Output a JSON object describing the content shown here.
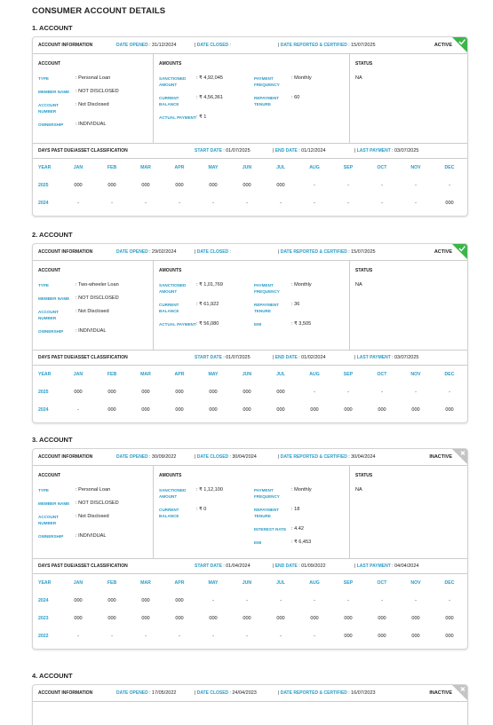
{
  "title": "CONSUMER ACCOUNT DETAILS",
  "accounts": [
    {
      "heading": "1. ACCOUNT",
      "badge_color": "#3cb54a",
      "badge_icon": "check",
      "info": {
        "label": "ACCOUNT INFORMATION",
        "date_opened": {
          "label": "DATE OPENED",
          "value": "31/12/2024"
        },
        "date_closed": {
          "label": "DATE CLOSED"
        },
        "date_reported": {
          "label": "DATE REPORTED & CERTIFIED",
          "value": "15/07/2025"
        },
        "status": "ACTIVE"
      },
      "account": {
        "title": "ACCOUNT",
        "fields": [
          {
            "label": "TYPE",
            "value": "Personal Loan"
          },
          {
            "label": "MEMBER NAME",
            "value": "NOT DISCLOSED"
          },
          {
            "label": "ACCOUNT NUMBER",
            "value": "Not Disclosed"
          },
          {
            "label": "OWNERSHIP",
            "value": "INDIVIDUAL"
          }
        ]
      },
      "amounts": {
        "title": "AMOUNTS",
        "left": [
          {
            "label": "SANCTIONED AMOUNT",
            "value": "₹ 4,92,045"
          },
          {
            "label": "CURRENT BALANCE",
            "value": "₹ 4,56,361"
          },
          {
            "label": "ACTUAL PAYMENT",
            "value": "₹ 1"
          }
        ],
        "right": [
          {
            "label": "PAYMENT FREQUENCY",
            "value": "Monthly"
          },
          {
            "label": "REPAYMENT TENURE",
            "value": "60"
          }
        ]
      },
      "status": {
        "title": "STATUS",
        "value": "NA"
      },
      "dpd": {
        "title": "DAYS PAST DUE/ASSET CLASSIFICATION",
        "start_date": {
          "label": "START DATE",
          "value": "01/07/2025"
        },
        "end_date": {
          "label": "END DATE",
          "value": "01/12/2024"
        },
        "last_payment": {
          "label": "LAST PAYMENT",
          "value": "03/07/2025"
        },
        "columns": [
          "YEAR",
          "JAN",
          "FEB",
          "MAR",
          "APR",
          "MAY",
          "JUN",
          "JUL",
          "AUG",
          "SEP",
          "OCT",
          "NOV",
          "DEC"
        ],
        "rows": [
          [
            "2025",
            "000",
            "000",
            "000",
            "000",
            "000",
            "000",
            "000",
            "-",
            "-",
            "-",
            "-",
            "-"
          ],
          [
            "2024",
            "-",
            "-",
            "-",
            "-",
            "-",
            "-",
            "-",
            "-",
            "-",
            "-",
            "-",
            "000"
          ]
        ]
      }
    },
    {
      "heading": "2. ACCOUNT",
      "badge_color": "#3cb54a",
      "badge_icon": "check",
      "info": {
        "label": "ACCOUNT INFORMATION",
        "date_opened": {
          "label": "DATE OPENED",
          "value": "29/02/2024"
        },
        "date_closed": {
          "label": "DATE CLOSED"
        },
        "date_reported": {
          "label": "DATE REPORTED & CERTIFIED",
          "value": "15/07/2025"
        },
        "status": "ACTIVE"
      },
      "account": {
        "title": "ACCOUNT",
        "fields": [
          {
            "label": "TYPE",
            "value": "Two-wheeler Loan"
          },
          {
            "label": "MEMBER NAME",
            "value": "NOT DISCLOSED"
          },
          {
            "label": "ACCOUNT NUMBER",
            "value": "Not Disclosed"
          },
          {
            "label": "OWNERSHIP",
            "value": "INDIVIDUAL"
          }
        ]
      },
      "amounts": {
        "title": "AMOUNTS",
        "left": [
          {
            "label": "SANCTIONED AMOUNT",
            "value": "₹ 1,01,769"
          },
          {
            "label": "CURRENT BALANCE",
            "value": "₹ 61,922"
          },
          {
            "label": "ACTUAL PAYMENT",
            "value": "₹ 56,080"
          }
        ],
        "right": [
          {
            "label": "PAYMENT FREQUENCY",
            "value": "Monthly"
          },
          {
            "label": "REPAYMENT TENURE",
            "value": "36"
          },
          {
            "label": "EMI",
            "value": "₹ 3,505"
          }
        ]
      },
      "status": {
        "title": "STATUS",
        "value": "NA"
      },
      "dpd": {
        "title": "DAYS PAST DUE/ASSET CLASSIFICATION",
        "start_date": {
          "label": "START DATE",
          "value": "01/07/2025"
        },
        "end_date": {
          "label": "END DATE",
          "value": "01/02/2024"
        },
        "last_payment": {
          "label": "LAST PAYMENT",
          "value": "03/07/2025"
        },
        "columns": [
          "YEAR",
          "JAN",
          "FEB",
          "MAR",
          "APR",
          "MAY",
          "JUN",
          "JUL",
          "AUG",
          "SEP",
          "OCT",
          "NOV",
          "DEC"
        ],
        "rows": [
          [
            "2025",
            "000",
            "000",
            "000",
            "000",
            "000",
            "000",
            "000",
            "-",
            "-",
            "-",
            "-",
            "-"
          ],
          [
            "2024",
            "-",
            "000",
            "000",
            "000",
            "000",
            "000",
            "000",
            "000",
            "000",
            "000",
            "000",
            "000"
          ]
        ]
      }
    },
    {
      "heading": "3. ACCOUNT",
      "badge_color": "#c4c4c4",
      "badge_icon": "cross",
      "info": {
        "label": "ACCOUNT INFORMATION",
        "date_opened": {
          "label": "DATE OPENED",
          "value": "30/09/2022"
        },
        "date_closed": {
          "label": "DATE CLOSED",
          "value": "30/04/2024"
        },
        "date_reported": {
          "label": "DATE REPORTED & CERTIFIED",
          "value": "30/04/2024"
        },
        "status": "INACTIVE"
      },
      "account": {
        "title": "ACCOUNT",
        "fields": [
          {
            "label": "TYPE",
            "value": "Personal Loan"
          },
          {
            "label": "MEMBER NAME",
            "value": "NOT DISCLOSED"
          },
          {
            "label": "ACCOUNT NUMBER",
            "value": "Not Disclosed"
          },
          {
            "label": "OWNERSHIP",
            "value": "INDIVIDUAL"
          }
        ]
      },
      "amounts": {
        "title": "AMOUNTS",
        "left": [
          {
            "label": "SANCTIONED AMOUNT",
            "value": "₹ 1,12,100"
          },
          {
            "label": "CURRENT BALANCE",
            "value": "₹ 0"
          }
        ],
        "right": [
          {
            "label": "PAYMENT FREQUENCY",
            "value": "Monthly"
          },
          {
            "label": "REPAYMENT TENURE",
            "value": "18"
          },
          {
            "label": "INTEREST RATE",
            "value": "4.42"
          },
          {
            "label": "EMI",
            "value": "₹ 6,453"
          }
        ]
      },
      "status": {
        "title": "STATUS",
        "value": "NA"
      },
      "dpd": {
        "title": "DAYS PAST DUE/ASSET CLASSIFICATION",
        "start_date": {
          "label": "START DATE",
          "value": "01/04/2024"
        },
        "end_date": {
          "label": "END DATE",
          "value": "01/09/2022"
        },
        "last_payment": {
          "label": "LAST PAYMENT",
          "value": "04/04/2024"
        },
        "columns": [
          "YEAR",
          "JAN",
          "FEB",
          "MAR",
          "APR",
          "MAY",
          "JUN",
          "JUL",
          "AUG",
          "SEP",
          "OCT",
          "NOV",
          "DEC"
        ],
        "rows": [
          [
            "2024",
            "000",
            "000",
            "000",
            "000",
            "-",
            "-",
            "-",
            "-",
            "-",
            "-",
            "-",
            "-"
          ],
          [
            "2023",
            "000",
            "000",
            "000",
            "000",
            "000",
            "000",
            "000",
            "000",
            "000",
            "000",
            "000",
            "000"
          ],
          [
            "2022",
            "-",
            "-",
            "-",
            "-",
            "-",
            "-",
            "-",
            "-",
            "000",
            "000",
            "000",
            "000"
          ]
        ]
      }
    },
    {
      "heading": "4. ACCOUNT",
      "badge_color": "#c4c4c4",
      "badge_icon": "cross",
      "info": {
        "label": "ACCOUNT INFORMATION",
        "date_opened": {
          "label": "DATE OPENED",
          "value": "17/05/2022"
        },
        "date_closed": {
          "label": "DATE CLOSED",
          "value": "24/04/2023"
        },
        "date_reported": {
          "label": "DATE REPORTED & CERTIFIED",
          "value": "16/07/2023"
        },
        "status": "INACTIVE"
      }
    }
  ]
}
